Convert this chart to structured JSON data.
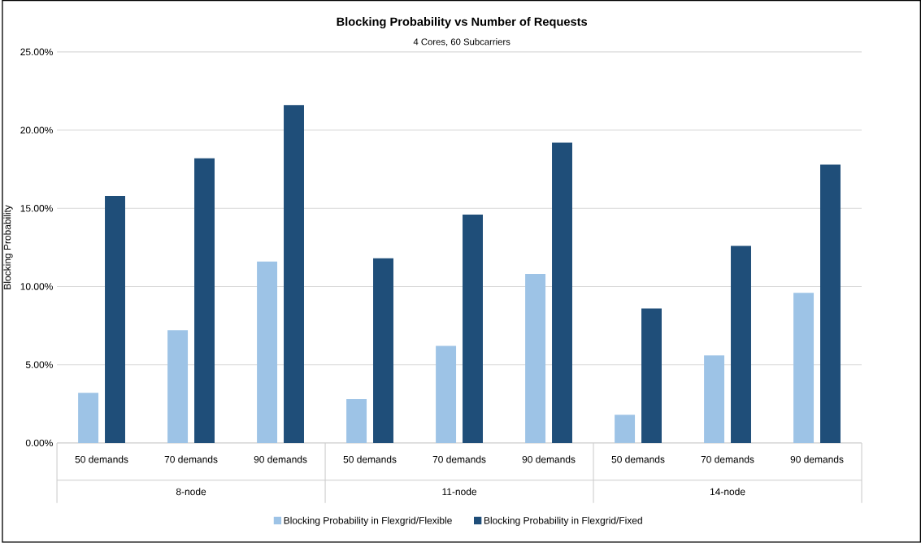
{
  "chart_data": {
    "type": "bar",
    "title": "Blocking Probability vs Number of Requests",
    "subtitle": "4 Cores, 60 Subcarriers",
    "ylabel": "Blocking Probability",
    "categories": [
      "50 demands",
      "70 demands",
      "90 demands",
      "50 demands",
      "70 demands",
      "90 demands",
      "50 demands",
      "70 demands",
      "90 demands"
    ],
    "annotations": [
      "8-node",
      "11-node",
      "14-node"
    ],
    "series": [
      {
        "name": "Blocking Probability in Flexgrid/Flexible",
        "color": "#9dc3e6",
        "values": [
          3.2,
          7.2,
          11.6,
          2.8,
          6.2,
          10.8,
          1.8,
          5.6,
          9.6
        ]
      },
      {
        "name": "Blocking Probability in Flexgrid/Fixed",
        "color": "#1f4e79",
        "values": [
          15.8,
          18.2,
          21.6,
          11.8,
          14.6,
          19.2,
          8.6,
          12.6,
          17.8
        ]
      }
    ],
    "ylim": [
      0,
      25
    ],
    "yticks": [
      {
        "value": 0,
        "label": "0.00%"
      },
      {
        "value": 5,
        "label": "5.00%"
      },
      {
        "value": 10,
        "label": "10.00%"
      },
      {
        "value": 15,
        "label": "15.00%"
      },
      {
        "value": 20,
        "label": "20.00%"
      },
      {
        "value": 25,
        "label": "25.00%"
      }
    ],
    "grid": "y",
    "legend": "bottom"
  }
}
